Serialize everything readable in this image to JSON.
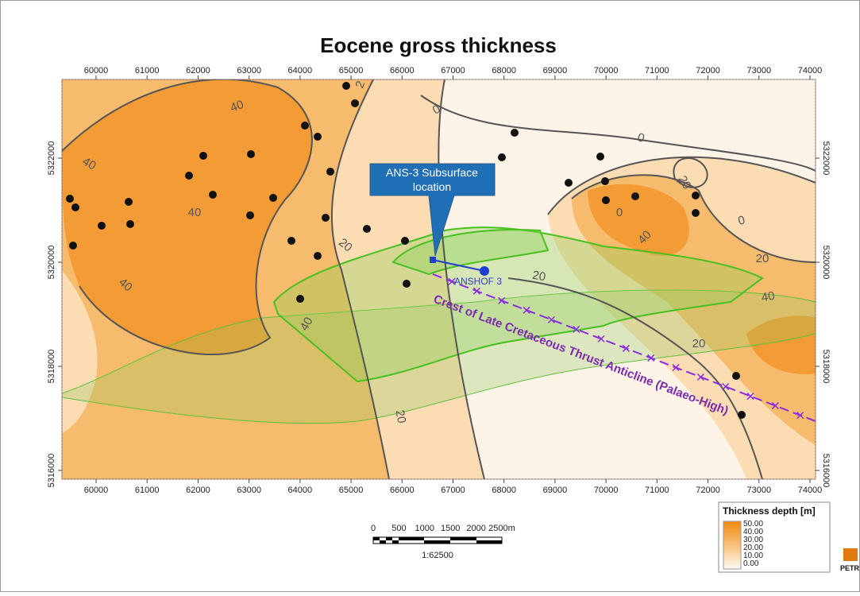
{
  "title": "Eocene gross thickness",
  "x_ticks": [
    60000,
    61000,
    62000,
    63000,
    64000,
    65000,
    66000,
    67000,
    68000,
    69000,
    70000,
    71000,
    72000,
    73000,
    74000
  ],
  "y_ticks": [
    5322000,
    5320000,
    5318000,
    5316000
  ],
  "contour_labels": [
    "40",
    "40",
    "40",
    "40",
    "40",
    "40",
    "40",
    "20",
    "20",
    "20",
    "20",
    "20",
    "20",
    "2",
    "0",
    "0",
    "0",
    "0"
  ],
  "callout": [
    "ANS-3 Subsurface",
    "location"
  ],
  "well_label": "ANSHOF 3",
  "crest_label": "Crest of Late Cretaceous Thrust Anticline (Palaeo-High)",
  "legend": {
    "title": "Thickness depth [m]",
    "labels": [
      "50.00",
      "40.00",
      "30.00",
      "20.00",
      "10.00",
      "0.00"
    ]
  },
  "scale_bar": {
    "labels": [
      "0",
      "500",
      "1000",
      "1500",
      "2000",
      "2500m"
    ],
    "ratio": "1:62500"
  },
  "logo": "PETR"
}
